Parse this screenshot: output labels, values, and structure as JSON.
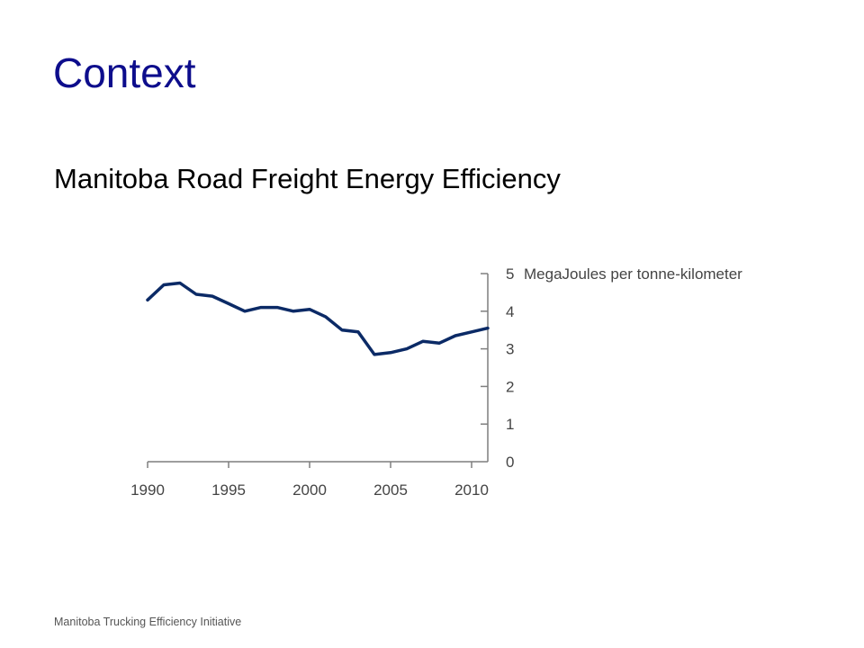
{
  "slide": {
    "title": "Context",
    "subtitle": "Manitoba Road Freight Energy Efficiency",
    "footer": "Manitoba Trucking Efficiency Initiative"
  },
  "colors": {
    "title": "#0d0d8c",
    "line": "#0b2a66",
    "axis": "#7f7f7f",
    "text": "#444444"
  },
  "chart_data": {
    "type": "line",
    "title": "",
    "xlabel": "",
    "ylabel": "",
    "unit_label": "MegaJoules per tonne-kilometer",
    "xlim": [
      1990,
      2011
    ],
    "ylim": [
      0,
      5
    ],
    "x_ticks": [
      1990,
      1995,
      2000,
      2005,
      2010
    ],
    "y_ticks": [
      0,
      1,
      2,
      3,
      4,
      5
    ],
    "y_axis_position": "right",
    "grid": false,
    "legend": "none",
    "series": [
      {
        "x": [
          1990,
          1991,
          1992,
          1993,
          1994,
          1995,
          1996,
          1997,
          1998,
          1999,
          2000,
          2001,
          2002,
          2003,
          2004,
          2005,
          2006,
          2007,
          2008,
          2009,
          2010,
          2011
        ],
        "values": [
          4.3,
          4.7,
          4.75,
          4.45,
          4.4,
          4.2,
          4.0,
          4.1,
          4.1,
          4.0,
          4.05,
          3.85,
          3.5,
          3.45,
          2.85,
          2.9,
          3.0,
          3.2,
          3.15,
          3.35,
          3.45,
          3.55
        ]
      }
    ]
  }
}
